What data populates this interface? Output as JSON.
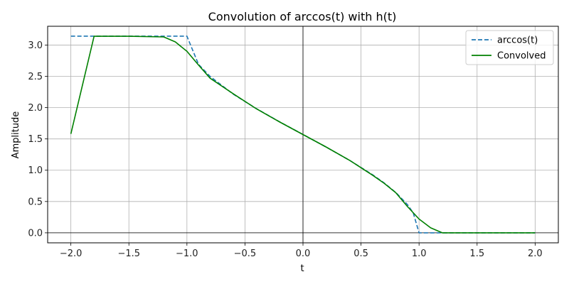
{
  "chart_data": {
    "type": "line",
    "title": "Convolution of arccos(t) with h(t)",
    "xlabel": "t",
    "ylabel": "Amplitude",
    "xlim": [
      -2.2,
      2.2
    ],
    "ylim": [
      -0.16,
      3.3
    ],
    "xticks": [
      -2.0,
      -1.5,
      -1.0,
      -0.5,
      0.0,
      0.5,
      1.0,
      1.5,
      2.0
    ],
    "xtick_labels": [
      "−2.0",
      "−1.5",
      "−1.0",
      "−0.5",
      "0.0",
      "0.5",
      "1.0",
      "1.5",
      "2.0"
    ],
    "yticks": [
      0.0,
      0.5,
      1.0,
      1.5,
      2.0,
      2.5,
      3.0
    ],
    "ytick_labels": [
      "0.0",
      "0.5",
      "1.0",
      "1.5",
      "2.0",
      "2.5",
      "3.0"
    ],
    "grid": true,
    "reference_lines": {
      "x": 0,
      "y": 0
    },
    "legend_position": "upper-right",
    "series": [
      {
        "name": "arccos(t)",
        "style": "dashed",
        "color": "#1f77b4",
        "x": [
          -2.0,
          -1.0,
          -1.0,
          -0.9,
          -0.8,
          -0.6,
          -0.4,
          -0.2,
          0.0,
          0.2,
          0.4,
          0.6,
          0.7,
          0.8,
          0.9,
          0.95,
          1.0,
          1.0,
          1.2,
          1.5,
          2.0
        ],
        "y": [
          3.1416,
          3.1416,
          3.1416,
          2.6906,
          2.4981,
          2.2143,
          1.9823,
          1.7722,
          1.5708,
          1.3694,
          1.1593,
          0.9273,
          0.7954,
          0.6435,
          0.451,
          0.3176,
          0.0,
          0.0,
          0.0,
          0.0,
          0.0
        ]
      },
      {
        "name": "Convolved",
        "style": "solid",
        "color": "#008000",
        "x": [
          -2.0,
          -1.8,
          -1.5,
          -1.2,
          -1.1,
          -1.0,
          -0.9,
          -0.8,
          -0.6,
          -0.4,
          -0.2,
          0.0,
          0.2,
          0.4,
          0.6,
          0.7,
          0.8,
          0.9,
          1.0,
          1.1,
          1.2,
          1.5,
          2.0
        ],
        "y": [
          1.58,
          3.14,
          3.14,
          3.13,
          3.05,
          2.9,
          2.68,
          2.47,
          2.22,
          1.98,
          1.77,
          1.57,
          1.37,
          1.16,
          0.92,
          0.79,
          0.64,
          0.42,
          0.22,
          0.08,
          0.0,
          0.0,
          0.0
        ]
      }
    ]
  }
}
